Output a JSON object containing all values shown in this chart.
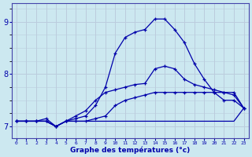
{
  "title": "Graphe des températures (°c)",
  "bg_color": "#cce8f0",
  "plot_bg_color": "#cce8f0",
  "grid_color": "#bbccdd",
  "line_color": "#0000aa",
  "x_hours": [
    0,
    1,
    2,
    3,
    4,
    5,
    6,
    7,
    8,
    9,
    10,
    11,
    12,
    13,
    14,
    15,
    16,
    17,
    18,
    19,
    20,
    21,
    22,
    23
  ],
  "line_top": [
    7.1,
    7.1,
    7.1,
    7.1,
    7.0,
    7.1,
    7.15,
    7.2,
    7.4,
    7.75,
    8.4,
    8.7,
    8.8,
    8.85,
    9.05,
    9.05,
    8.85,
    8.6,
    8.2,
    7.9,
    7.65,
    7.5,
    7.5,
    7.35
  ],
  "line_mid_high": [
    7.1,
    7.1,
    7.1,
    7.15,
    7.0,
    7.1,
    7.2,
    7.3,
    7.5,
    7.65,
    7.7,
    7.75,
    7.8,
    7.82,
    8.1,
    8.15,
    8.1,
    7.9,
    7.8,
    7.75,
    7.7,
    7.65,
    7.6,
    7.35
  ],
  "line_mid_low": [
    7.1,
    7.1,
    7.1,
    7.1,
    7.0,
    7.1,
    7.1,
    7.1,
    7.15,
    7.2,
    7.4,
    7.5,
    7.55,
    7.6,
    7.65,
    7.65,
    7.65,
    7.65,
    7.65,
    7.65,
    7.65,
    7.65,
    7.65,
    7.35
  ],
  "line_flat": [
    7.1,
    7.1,
    7.1,
    7.1,
    7.0,
    7.1,
    7.1,
    7.1,
    7.1,
    7.1,
    7.1,
    7.1,
    7.1,
    7.1,
    7.1,
    7.1,
    7.1,
    7.1,
    7.1,
    7.1,
    7.1,
    7.1,
    7.1,
    7.35
  ],
  "ylim": [
    6.78,
    9.35
  ],
  "yticks": [
    7,
    8,
    9
  ],
  "xlim": [
    -0.5,
    23.5
  ],
  "figsize": [
    3.2,
    2.0
  ],
  "dpi": 100
}
